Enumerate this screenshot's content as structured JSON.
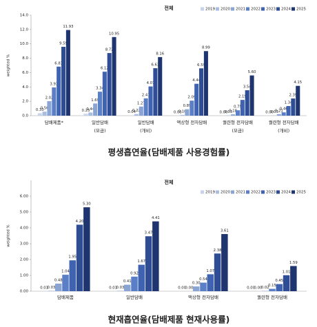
{
  "chart_data": [
    {
      "type": "bar",
      "title": "전체",
      "y_label": "weighted %",
      "legend": "top-right",
      "grid": false,
      "caption": "평생흡연율(담배제품 사용경험률)",
      "categories": [
        [
          "담배제품*"
        ],
        [
          "일반담배",
          "(모금)"
        ],
        [
          "일반담배",
          "(개비)"
        ],
        [
          "액상형 전자담배"
        ],
        [
          "궐련형 전자담배",
          "(모금)"
        ],
        [
          "궐련형 전자담배",
          "(개비)"
        ]
      ],
      "ylim": [
        0,
        14
      ],
      "yticks": [
        {
          "value": 0,
          "label": "0.0"
        },
        {
          "value": 2,
          "label": "2.0"
        },
        {
          "value": 4,
          "label": "4.0"
        },
        {
          "value": 6,
          "label": "6.0"
        },
        {
          "value": 8,
          "label": "8.0"
        },
        {
          "value": 10,
          "label": "10.0"
        },
        {
          "value": 12,
          "label": "12.0"
        },
        {
          "value": 14,
          "label": "14.0"
        }
      ],
      "series": [
        {
          "name": "2019",
          "color": "#c6d3ea",
          "values": [
            0.33,
            0.25,
            0.04,
            0,
            0,
            0
          ],
          "value_labels": [
            "0.33",
            "0.25",
            "0.04",
            "0.00",
            "0.00",
            "0.00"
          ]
        },
        {
          "name": "2020",
          "color": "#a9bde0",
          "values": [
            0.56,
            0.44,
            0.22,
            0.1,
            0.03,
            0.03
          ],
          "value_labels": [
            "0.56",
            "0.44",
            "0.22",
            "0.10",
            "0.03",
            "0.03"
          ]
        },
        {
          "name": "2021",
          "color": "#8aa4d4",
          "values": [
            2.02,
            1.69,
            1.27,
            0.89,
            0.18,
            0.21
          ],
          "value_labels": [
            "2.02",
            "1.69",
            "1.27",
            "0.89",
            "0.18",
            "0.21"
          ]
        },
        {
          "name": "2022",
          "color": "#5b7fc7",
          "values": [
            3.93,
            3.34,
            2.41,
            2.09,
            0.75,
            0.46
          ],
          "value_labels": [
            "3.93",
            "3.34",
            "2.41",
            "2.09",
            "0.75",
            "0.46"
          ]
        },
        {
          "name": "2023",
          "color": "#3f63b0",
          "values": [
            6.83,
            6.12,
            4.07,
            4.44,
            2.19,
            1.34
          ],
          "value_labels": [
            "6.83",
            "6.12",
            "4.07",
            "4.44",
            "2.19",
            "1.34"
          ]
        },
        {
          "name": "2024",
          "color": "#2f4d94",
          "values": [
            9.59,
            8.72,
            6.61,
            6.59,
            3.54,
            2.39
          ],
          "value_labels": [
            "9.59",
            "8.72",
            "6.61",
            "6.59",
            "3.54",
            "2.39"
          ]
        },
        {
          "name": "2025",
          "color": "#1f3570",
          "values": [
            11.93,
            10.95,
            8.16,
            8.99,
            5.6,
            4.15
          ],
          "value_labels": [
            "11.93",
            "10.95",
            "8.16",
            "8.99",
            "5.60",
            "4.15"
          ]
        }
      ]
    },
    {
      "type": "bar",
      "title": "전체",
      "y_label": "weighted %",
      "legend": "top-right",
      "grid": false,
      "caption": "현재흡연율(담배제품 현재사용률)",
      "categories": [
        [
          "담배제품"
        ],
        [
          "일반담배"
        ],
        [
          "액상형 전자담배"
        ],
        [
          "궐련형 전자담배"
        ]
      ],
      "ylim": [
        0,
        7
      ],
      "yticks": [
        {
          "value": 0,
          "label": "0.00"
        },
        {
          "value": 1,
          "label": "1.00"
        },
        {
          "value": 2,
          "label": "2.00"
        },
        {
          "value": 3,
          "label": "3.00"
        },
        {
          "value": 4,
          "label": "4.00"
        },
        {
          "value": 5,
          "label": "5.00"
        },
        {
          "value": 6,
          "label": "6.00"
        }
      ],
      "series": [
        {
          "name": "2019",
          "color": "#c6d3ea",
          "values": [
            0.01,
            0.01,
            0,
            0
          ],
          "value_labels": [
            "0.01",
            "0.01",
            "0.00",
            "0.00"
          ]
        },
        {
          "name": "2020",
          "color": "#a9bde0",
          "values": [
            0.03,
            0.03,
            0,
            0
          ],
          "value_labels": [
            "0.03",
            "0.03",
            "0.00",
            "0.00"
          ]
        },
        {
          "name": "2021",
          "color": "#8aa4d4",
          "values": [
            0.48,
            0.41,
            0.3,
            0.02
          ],
          "value_labels": [
            "0.48",
            "0.41",
            "0.30",
            "0.02"
          ]
        },
        {
          "name": "2022",
          "color": "#5b7fc7",
          "values": [
            1.04,
            0.92,
            0.54,
            0.15
          ],
          "value_labels": [
            "1.04",
            "0.92",
            "0.54",
            "0.15"
          ]
        },
        {
          "name": "2023",
          "color": "#3f63b0",
          "values": [
            1.95,
            1.67,
            1.07,
            0.45
          ],
          "value_labels": [
            "1.95",
            "1.67",
            "1.07",
            "0.45"
          ]
        },
        {
          "name": "2024",
          "color": "#2f4d94",
          "values": [
            4.2,
            3.47,
            2.38,
            1.01
          ],
          "value_labels": [
            "4.20",
            "3.47",
            "2.38",
            "1.01"
          ]
        },
        {
          "name": "2025",
          "color": "#1f3570",
          "values": [
            5.3,
            4.41,
            3.61,
            1.59
          ],
          "value_labels": [
            "5.30",
            "4.41",
            "3.61",
            "1.59"
          ]
        }
      ]
    }
  ]
}
